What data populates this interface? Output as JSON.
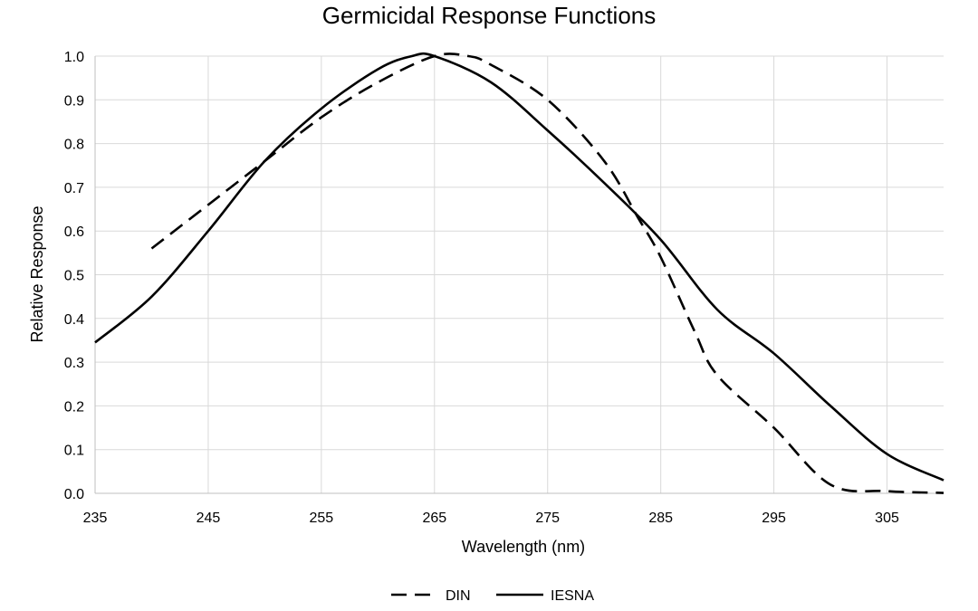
{
  "chart_data": {
    "type": "line",
    "title": "Germicidal Response Functions",
    "xlabel": "Wavelength (nm)",
    "ylabel": "Relative Response",
    "xlim": [
      235,
      310
    ],
    "ylim": [
      0,
      1
    ],
    "xticks": [
      235,
      245,
      255,
      265,
      275,
      285,
      295,
      305
    ],
    "yticks": [
      0.0,
      0.1,
      0.2,
      0.3,
      0.4,
      0.5,
      0.6,
      0.7,
      0.8,
      0.9,
      1.0
    ],
    "grid": true,
    "legend_position": "bottom",
    "series": [
      {
        "name": "DIN",
        "line_style": "dashed",
        "color": "#000000",
        "x": [
          240,
          245,
          250,
          255,
          260,
          265,
          268,
          270,
          275,
          280,
          283,
          285,
          288,
          290,
          295,
          300,
          305,
          310
        ],
        "y": [
          0.56,
          0.66,
          0.76,
          0.86,
          0.94,
          1.0,
          1.0,
          0.98,
          0.9,
          0.76,
          0.63,
          0.54,
          0.37,
          0.27,
          0.15,
          0.02,
          0.005,
          0.001
        ]
      },
      {
        "name": "IESNA",
        "line_style": "solid",
        "color": "#000000",
        "x": [
          235,
          240,
          245,
          250,
          255,
          260,
          263,
          265,
          270,
          275,
          280,
          285,
          290,
          295,
          300,
          305,
          310
        ],
        "y": [
          0.345,
          0.45,
          0.6,
          0.76,
          0.88,
          0.97,
          1.0,
          1.0,
          0.94,
          0.83,
          0.71,
          0.58,
          0.42,
          0.32,
          0.2,
          0.09,
          0.03
        ]
      }
    ]
  }
}
